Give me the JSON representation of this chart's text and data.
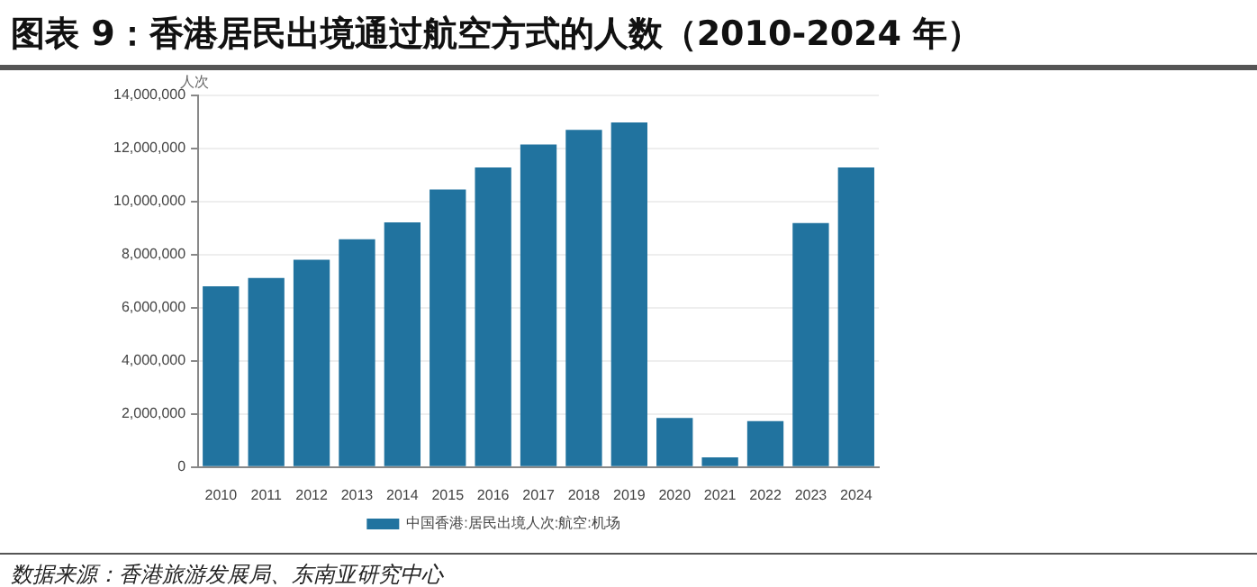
{
  "chart_data": {
    "type": "bar",
    "title": "图表 9：香港居民出境通过航空方式的人数（2010-2024 年）",
    "ylabel": "人次",
    "categories": [
      "2010",
      "2011",
      "2012",
      "2013",
      "2014",
      "2015",
      "2016",
      "2017",
      "2018",
      "2019",
      "2020",
      "2021",
      "2022",
      "2023",
      "2024"
    ],
    "series": [
      {
        "name": "中国香港:居民出境人次:航空:机场",
        "color": "#21739f",
        "values": [
          6810000,
          7120000,
          7810000,
          8580000,
          9220000,
          10460000,
          11290000,
          12150000,
          12700000,
          12980000,
          1850000,
          370000,
          1730000,
          9190000,
          11290000
        ]
      }
    ],
    "ylim": [
      0,
      14000000
    ],
    "yticks": [
      0,
      {
        "value": 2000000,
        "label": "2,000,000"
      },
      {
        "value": 4000000,
        "label": "4,000,000"
      },
      {
        "value": 6000000,
        "label": "6,000,000"
      },
      {
        "value": 8000000,
        "label": "8,000,000"
      },
      {
        "value": 10000000,
        "label": "10,000,000"
      },
      {
        "value": 12000000,
        "label": "12,000,000"
      },
      {
        "value": 14000000,
        "label": "14,000,000"
      }
    ],
    "grid": "y",
    "legend": "bottom",
    "annotations": [
      "数据来源：香港旅游发展局、东南亚研究中心"
    ]
  }
}
